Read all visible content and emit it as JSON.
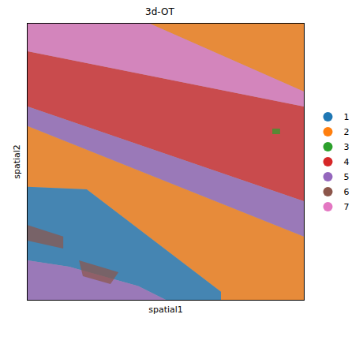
{
  "chart_data": {
    "type": "spatial",
    "title": "3d-OT",
    "x_label": "spatial1",
    "y_label": "spatial2",
    "xlim": [
      0,
      100
    ],
    "ylim": [
      0,
      100
    ],
    "tick_labels": false,
    "grid": false,
    "legend": "right",
    "series": [
      {
        "name": "1",
        "color": "#1f77b4",
        "x": [
          0,
          21.4,
          70,
          70,
          50,
          40,
          15,
          0
        ],
        "y": [
          40.9,
          40,
          2.9,
          0,
          0,
          5,
          12,
          14.3
        ]
      },
      {
        "name": "2",
        "color": "#ff7f0e",
        "x": [
          44.3,
          100,
          100,
          null,
          0,
          100,
          100,
          70,
          70,
          21.4,
          0
        ],
        "y": [
          100,
          100,
          75.4,
          null,
          62.9,
          22.9,
          0,
          0,
          2.9,
          40,
          40.9
        ]
      },
      {
        "name": "3",
        "color": "#2ca02c",
        "x": [
          88.6,
          91.4,
          91.4,
          88.6
        ],
        "y": [
          62,
          62,
          60,
          60
        ]
      },
      {
        "name": "4",
        "color": "#d62728",
        "x": [
          0,
          100,
          100,
          0
        ],
        "y": [
          90,
          70,
          35.7,
          70
        ]
      },
      {
        "name": "5",
        "color": "#9467bd",
        "x": [
          0,
          100,
          100,
          0,
          null,
          0,
          15,
          40,
          50,
          0
        ],
        "y": [
          70,
          35.7,
          22.9,
          62.9,
          null,
          14.3,
          12,
          5,
          0,
          0
        ]
      },
      {
        "name": "6",
        "color": "#8c564b",
        "x": [
          0,
          12.9,
          12.9,
          0,
          null,
          18.6,
          32.9,
          30,
          20
        ],
        "y": [
          27.1,
          22.9,
          18.6,
          21.4,
          null,
          14.3,
          10,
          5.7,
          8.6
        ]
      },
      {
        "name": "7",
        "color": "#e377c2",
        "x": [
          0,
          44.3,
          100,
          100,
          0
        ],
        "y": [
          100,
          100,
          75.4,
          70,
          90
        ]
      }
    ]
  }
}
